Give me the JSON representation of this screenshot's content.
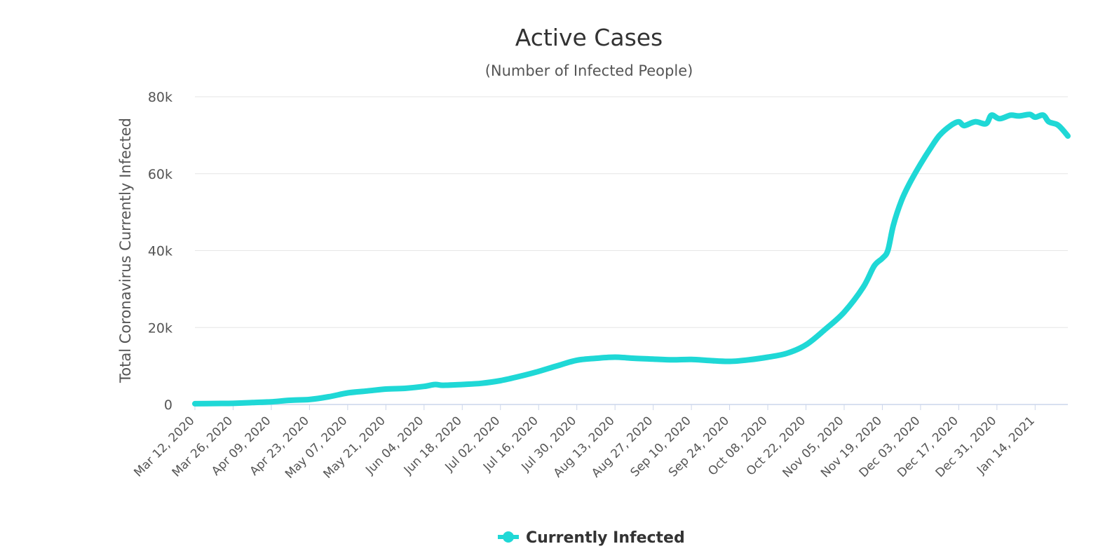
{
  "chart_data": {
    "type": "line",
    "title": "Active Cases",
    "subtitle": "(Number of Infected People)",
    "ylabel": "Total Coronavirus Currently Infected",
    "xlabel": "",
    "ylim": [
      0,
      80000
    ],
    "yticks": [
      {
        "value": 0,
        "label": "0"
      },
      {
        "value": 20000,
        "label": "20k"
      },
      {
        "value": 40000,
        "label": "40k"
      },
      {
        "value": 60000,
        "label": "60k"
      },
      {
        "value": 80000,
        "label": "80k"
      }
    ],
    "x_start": "Mar 12, 2020",
    "x_end": "Jan 26, 2021",
    "xticks": [
      {
        "date": "2020-03-12",
        "label": "Mar 12, 2020"
      },
      {
        "date": "2020-03-26",
        "label": "Mar 26, 2020"
      },
      {
        "date": "2020-04-09",
        "label": "Apr 09, 2020"
      },
      {
        "date": "2020-04-23",
        "label": "Apr 23, 2020"
      },
      {
        "date": "2020-05-07",
        "label": "May 07, 2020"
      },
      {
        "date": "2020-05-21",
        "label": "May 21, 2020"
      },
      {
        "date": "2020-06-04",
        "label": "Jun 04, 2020"
      },
      {
        "date": "2020-06-18",
        "label": "Jun 18, 2020"
      },
      {
        "date": "2020-07-02",
        "label": "Jul 02, 2020"
      },
      {
        "date": "2020-07-16",
        "label": "Jul 16, 2020"
      },
      {
        "date": "2020-07-30",
        "label": "Jul 30, 2020"
      },
      {
        "date": "2020-08-13",
        "label": "Aug 13, 2020"
      },
      {
        "date": "2020-08-27",
        "label": "Aug 27, 2020"
      },
      {
        "date": "2020-09-10",
        "label": "Sep 10, 2020"
      },
      {
        "date": "2020-09-24",
        "label": "Sep 24, 2020"
      },
      {
        "date": "2020-10-08",
        "label": "Oct 08, 2020"
      },
      {
        "date": "2020-10-22",
        "label": "Oct 22, 2020"
      },
      {
        "date": "2020-11-05",
        "label": "Nov 05, 2020"
      },
      {
        "date": "2020-11-19",
        "label": "Nov 19, 2020"
      },
      {
        "date": "2020-12-03",
        "label": "Dec 03, 2020"
      },
      {
        "date": "2020-12-17",
        "label": "Dec 17, 2020"
      },
      {
        "date": "2020-12-31",
        "label": "Dec 31, 2020"
      },
      {
        "date": "2021-01-14",
        "label": "Jan 14, 2021"
      }
    ],
    "grid": true,
    "legend_position": "bottom-center",
    "series": [
      {
        "name": "Currently Infected",
        "color": "#1fd8d6",
        "points": [
          {
            "x": "2020-03-12",
            "y": 200
          },
          {
            "x": "2020-03-19",
            "y": 250
          },
          {
            "x": "2020-03-26",
            "y": 300
          },
          {
            "x": "2020-04-02",
            "y": 500
          },
          {
            "x": "2020-04-09",
            "y": 700
          },
          {
            "x": "2020-04-16",
            "y": 1100
          },
          {
            "x": "2020-04-23",
            "y": 1300
          },
          {
            "x": "2020-04-30",
            "y": 2000
          },
          {
            "x": "2020-05-07",
            "y": 3000
          },
          {
            "x": "2020-05-14",
            "y": 3500
          },
          {
            "x": "2020-05-21",
            "y": 4000
          },
          {
            "x": "2020-05-28",
            "y": 4200
          },
          {
            "x": "2020-06-04",
            "y": 4700
          },
          {
            "x": "2020-06-08",
            "y": 5200
          },
          {
            "x": "2020-06-11",
            "y": 5000
          },
          {
            "x": "2020-06-18",
            "y": 5200
          },
          {
            "x": "2020-06-25",
            "y": 5500
          },
          {
            "x": "2020-07-02",
            "y": 6200
          },
          {
            "x": "2020-07-09",
            "y": 7300
          },
          {
            "x": "2020-07-16",
            "y": 8600
          },
          {
            "x": "2020-07-23",
            "y": 10100
          },
          {
            "x": "2020-07-30",
            "y": 11500
          },
          {
            "x": "2020-08-06",
            "y": 12000
          },
          {
            "x": "2020-08-13",
            "y": 12300
          },
          {
            "x": "2020-08-20",
            "y": 12000
          },
          {
            "x": "2020-08-27",
            "y": 11800
          },
          {
            "x": "2020-09-03",
            "y": 11600
          },
          {
            "x": "2020-09-10",
            "y": 11700
          },
          {
            "x": "2020-09-17",
            "y": 11400
          },
          {
            "x": "2020-09-24",
            "y": 11200
          },
          {
            "x": "2020-10-01",
            "y": 11600
          },
          {
            "x": "2020-10-08",
            "y": 12300
          },
          {
            "x": "2020-10-15",
            "y": 13300
          },
          {
            "x": "2020-10-22",
            "y": 15500
          },
          {
            "x": "2020-10-29",
            "y": 19500
          },
          {
            "x": "2020-11-05",
            "y": 24000
          },
          {
            "x": "2020-11-12",
            "y": 30500
          },
          {
            "x": "2020-11-16",
            "y": 36000
          },
          {
            "x": "2020-11-19",
            "y": 38000
          },
          {
            "x": "2020-11-21",
            "y": 40000
          },
          {
            "x": "2020-11-23",
            "y": 46500
          },
          {
            "x": "2020-11-26",
            "y": 53000
          },
          {
            "x": "2020-11-29",
            "y": 57500
          },
          {
            "x": "2020-12-03",
            "y": 62500
          },
          {
            "x": "2020-12-07",
            "y": 67000
          },
          {
            "x": "2020-12-10",
            "y": 70000
          },
          {
            "x": "2020-12-14",
            "y": 72500
          },
          {
            "x": "2020-12-17",
            "y": 73500
          },
          {
            "x": "2020-12-19",
            "y": 72500
          },
          {
            "x": "2020-12-23",
            "y": 73500
          },
          {
            "x": "2020-12-27",
            "y": 73000
          },
          {
            "x": "2020-12-29",
            "y": 75200
          },
          {
            "x": "2021-01-01",
            "y": 74300
          },
          {
            "x": "2021-01-05",
            "y": 75200
          },
          {
            "x": "2021-01-08",
            "y": 75000
          },
          {
            "x": "2021-01-12",
            "y": 75400
          },
          {
            "x": "2021-01-14",
            "y": 74700
          },
          {
            "x": "2021-01-17",
            "y": 75200
          },
          {
            "x": "2021-01-19",
            "y": 73500
          },
          {
            "x": "2021-01-22",
            "y": 72800
          },
          {
            "x": "2021-01-24",
            "y": 71500
          },
          {
            "x": "2021-01-26",
            "y": 69800
          }
        ]
      }
    ]
  }
}
